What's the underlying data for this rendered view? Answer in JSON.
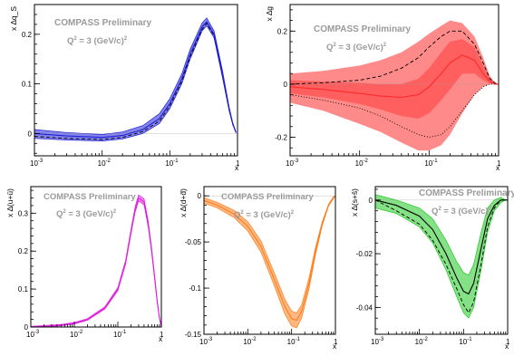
{
  "watermark": "COMPASS Preliminary",
  "scale_label": "Q",
  "scale_exp": "2",
  "scale_mid": "= 3 (GeV/c)",
  "scale_exp2": "2",
  "colors": {
    "delta_s": "#1f1fd8",
    "delta_g": "#ff2a2a",
    "delta_u_ubar": "#e020e0",
    "delta_d_dbar": "#ff7d1a",
    "delta_s_sbar": "#22c822"
  },
  "chart_data": [
    {
      "id": "delta_s",
      "type": "line",
      "ylabel": "x ∆q_S",
      "xlabel": "x",
      "xscale": "log",
      "xlim": [
        0.001,
        1
      ],
      "ylim": [
        -0.045,
        0.26
      ],
      "yticks": [
        0,
        0.1,
        0.2
      ],
      "ytick_labels": [
        "0",
        "0.1",
        "0.2"
      ],
      "x": [
        0.001,
        0.003,
        0.01,
        0.02,
        0.04,
        0.07,
        0.1,
        0.15,
        0.2,
        0.3,
        0.35,
        0.45,
        0.6,
        0.75,
        0.85,
        0.95
      ],
      "series": [
        {
          "role": "central",
          "values": [
            0.0,
            -0.005,
            -0.008,
            -0.004,
            0.008,
            0.03,
            0.06,
            0.11,
            0.16,
            0.215,
            0.225,
            0.2,
            0.12,
            0.05,
            0.02,
            0.002
          ]
        },
        {
          "role": "band_upper",
          "values": [
            0.008,
            0.002,
            -0.002,
            0.003,
            0.016,
            0.04,
            0.07,
            0.12,
            0.17,
            0.223,
            0.233,
            0.207,
            0.127,
            0.054,
            0.022,
            0.003
          ]
        },
        {
          "role": "band_lower",
          "values": [
            -0.01,
            -0.013,
            -0.015,
            -0.011,
            0.0,
            0.02,
            0.05,
            0.1,
            0.15,
            0.207,
            0.217,
            0.193,
            0.113,
            0.046,
            0.018,
            0.001
          ]
        },
        {
          "role": "dashed",
          "values": [
            -0.006,
            -0.01,
            -0.012,
            -0.008,
            0.004,
            0.025,
            0.055,
            0.105,
            0.155,
            0.21,
            0.222,
            0.197,
            0.118,
            0.049,
            0.019,
            0.002
          ]
        }
      ]
    },
    {
      "id": "delta_g",
      "type": "line",
      "ylabel": "x ∆g",
      "xlabel": "x",
      "xscale": "log",
      "xlim": [
        0.001,
        1
      ],
      "ylim": [
        -0.27,
        0.3
      ],
      "yticks": [
        -0.2,
        0,
        0.2
      ],
      "ytick_labels": [
        "-0.2",
        "0",
        "0.2"
      ],
      "x": [
        0.001,
        0.003,
        0.01,
        0.02,
        0.04,
        0.07,
        0.1,
        0.15,
        0.2,
        0.3,
        0.45,
        0.6,
        0.75,
        0.9,
        1.0
      ],
      "series": [
        {
          "role": "central",
          "values": [
            -0.01,
            -0.02,
            -0.035,
            -0.045,
            -0.05,
            -0.04,
            -0.01,
            0.04,
            0.08,
            0.11,
            0.09,
            0.04,
            0.01,
            0.0,
            0.0
          ]
        },
        {
          "role": "band_outer_upper",
          "values": [
            0.04,
            0.05,
            0.07,
            0.09,
            0.12,
            0.16,
            0.19,
            0.22,
            0.24,
            0.23,
            0.18,
            0.1,
            0.03,
            0.005,
            0.0
          ]
        },
        {
          "role": "band_outer_lower",
          "values": [
            -0.07,
            -0.1,
            -0.15,
            -0.18,
            -0.22,
            -0.25,
            -0.25,
            -0.23,
            -0.19,
            -0.11,
            -0.04,
            -0.01,
            0.0,
            0.0,
            0.0
          ]
        },
        {
          "role": "band_inner_upper",
          "values": [
            0.015,
            0.01,
            0.005,
            0.0,
            0.0,
            0.02,
            0.06,
            0.12,
            0.16,
            0.17,
            0.14,
            0.07,
            0.02,
            0.003,
            0.0
          ]
        },
        {
          "role": "band_inner_lower",
          "values": [
            -0.035,
            -0.05,
            -0.075,
            -0.095,
            -0.12,
            -0.13,
            -0.11,
            -0.06,
            -0.02,
            0.04,
            0.04,
            0.015,
            0.003,
            0.0,
            0.0
          ]
        },
        {
          "role": "dashed",
          "values": [
            0.0,
            0.005,
            0.015,
            0.03,
            0.06,
            0.1,
            0.14,
            0.18,
            0.2,
            0.2,
            0.15,
            0.08,
            0.02,
            0.003,
            0.0
          ]
        },
        {
          "role": "dotted",
          "values": [
            -0.04,
            -0.06,
            -0.09,
            -0.12,
            -0.16,
            -0.19,
            -0.2,
            -0.19,
            -0.16,
            -0.1,
            -0.04,
            -0.01,
            0.0,
            0.0,
            0.0
          ]
        }
      ]
    },
    {
      "id": "delta_u_ubar",
      "type": "line",
      "ylabel": "x ∆(u+ū)",
      "xlabel": "x",
      "xscale": "log",
      "xlim": [
        0.001,
        1
      ],
      "ylim": [
        0,
        0.37
      ],
      "yticks": [
        0,
        0.1,
        0.2,
        0.3
      ],
      "ytick_labels": [
        "0",
        "0.1",
        "0.2",
        "0.3"
      ],
      "x": [
        0.001,
        0.002,
        0.005,
        0.01,
        0.02,
        0.05,
        0.1,
        0.15,
        0.2,
        0.25,
        0.3,
        0.4,
        0.5,
        0.6,
        0.7,
        0.8,
        0.9,
        1.0
      ],
      "series": [
        {
          "role": "central",
          "values": [
            0.0,
            0.002,
            0.005,
            0.01,
            0.02,
            0.05,
            0.1,
            0.17,
            0.25,
            0.31,
            0.34,
            0.33,
            0.27,
            0.2,
            0.13,
            0.07,
            0.025,
            0.0
          ]
        },
        {
          "role": "band_upper",
          "values": [
            0.002,
            0.004,
            0.007,
            0.012,
            0.022,
            0.053,
            0.104,
            0.175,
            0.256,
            0.317,
            0.348,
            0.338,
            0.278,
            0.206,
            0.135,
            0.073,
            0.027,
            0.001
          ]
        },
        {
          "role": "band_lower",
          "values": [
            0.0,
            0.0,
            0.003,
            0.008,
            0.018,
            0.047,
            0.096,
            0.165,
            0.244,
            0.303,
            0.332,
            0.322,
            0.262,
            0.194,
            0.125,
            0.067,
            0.023,
            0.0
          ]
        }
      ]
    },
    {
      "id": "delta_d_dbar",
      "type": "line",
      "ylabel": "x ∆(d+d̄)",
      "xlabel": "x",
      "xscale": "log",
      "xlim": [
        0.001,
        1
      ],
      "ylim": [
        -0.15,
        0.01
      ],
      "yticks": [
        -0.15,
        -0.1,
        -0.05,
        0
      ],
      "ytick_labels": [
        "-0.15",
        "-0.1",
        "-0.05",
        "0"
      ],
      "x": [
        0.001,
        0.002,
        0.005,
        0.01,
        0.02,
        0.04,
        0.07,
        0.1,
        0.13,
        0.17,
        0.25,
        0.35,
        0.5,
        0.7,
        0.9,
        1.0
      ],
      "series": [
        {
          "role": "central",
          "values": [
            -0.005,
            -0.01,
            -0.02,
            -0.033,
            -0.055,
            -0.09,
            -0.12,
            -0.133,
            -0.135,
            -0.125,
            -0.095,
            -0.06,
            -0.03,
            -0.01,
            -0.002,
            0.0
          ]
        },
        {
          "role": "band_upper",
          "values": [
            -0.002,
            -0.007,
            -0.016,
            -0.028,
            -0.049,
            -0.083,
            -0.112,
            -0.125,
            -0.127,
            -0.118,
            -0.089,
            -0.056,
            -0.028,
            -0.009,
            -0.001,
            0.0
          ]
        },
        {
          "role": "band_lower",
          "values": [
            -0.008,
            -0.013,
            -0.024,
            -0.038,
            -0.061,
            -0.097,
            -0.128,
            -0.141,
            -0.143,
            -0.132,
            -0.101,
            -0.064,
            -0.032,
            -0.011,
            -0.003,
            0.0
          ]
        }
      ]
    },
    {
      "id": "delta_s_sbar",
      "type": "line",
      "ylabel": "x ∆(s+s̄)",
      "xlabel": "x",
      "xscale": "log",
      "xlim": [
        0.001,
        1
      ],
      "ylim": [
        -0.05,
        0.005
      ],
      "yticks": [
        -0.04,
        -0.02,
        0
      ],
      "ytick_labels": [
        "-0.04",
        "-0.02",
        "0"
      ],
      "x": [
        0.001,
        0.003,
        0.01,
        0.02,
        0.04,
        0.07,
        0.1,
        0.13,
        0.17,
        0.25,
        0.35,
        0.5,
        0.7,
        0.9,
        1.0
      ],
      "series": [
        {
          "role": "central",
          "values": [
            0.0,
            -0.002,
            -0.006,
            -0.011,
            -0.02,
            -0.029,
            -0.034,
            -0.035,
            -0.031,
            -0.018,
            -0.007,
            -0.002,
            0.0,
            0.0,
            0.0
          ]
        },
        {
          "role": "band_upper",
          "values": [
            0.002,
            0.0,
            -0.003,
            -0.007,
            -0.015,
            -0.023,
            -0.027,
            -0.028,
            -0.024,
            -0.012,
            -0.003,
            0.0,
            0.001,
            0.0,
            0.0
          ]
        },
        {
          "role": "band_lower",
          "values": [
            -0.003,
            -0.005,
            -0.01,
            -0.016,
            -0.026,
            -0.036,
            -0.042,
            -0.044,
            -0.04,
            -0.026,
            -0.012,
            -0.004,
            -0.001,
            0.0,
            0.0
          ]
        },
        {
          "role": "dashed",
          "values": [
            0.0,
            -0.004,
            -0.009,
            -0.015,
            -0.024,
            -0.033,
            -0.039,
            -0.042,
            -0.038,
            -0.024,
            -0.01,
            -0.003,
            0.0,
            0.0,
            0.0
          ]
        }
      ]
    }
  ]
}
